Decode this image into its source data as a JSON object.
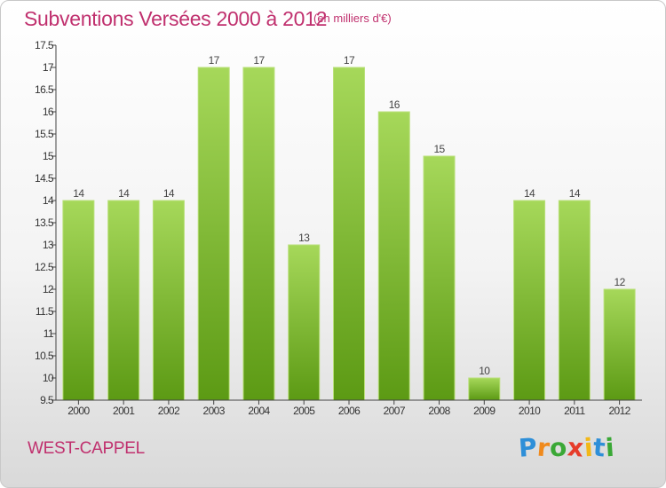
{
  "chart_data": {
    "type": "bar",
    "title": "Subventions Versées 2000 à 2012",
    "subtitle": "(en milliers d'€)",
    "categories": [
      "2000",
      "2001",
      "2002",
      "2003",
      "2004",
      "2005",
      "2006",
      "2007",
      "2008",
      "2009",
      "2010",
      "2011",
      "2012"
    ],
    "values": [
      14,
      14,
      14,
      17,
      17,
      13,
      17,
      16,
      15,
      10,
      14,
      14,
      12
    ],
    "value_labels": [
      "14",
      "14",
      "14",
      "17",
      "17",
      "13",
      "17",
      "16",
      "15",
      "10",
      "14",
      "14",
      "12"
    ],
    "ylim": [
      9.5,
      17.5
    ],
    "yticks": [
      9.5,
      10,
      10.5,
      11,
      11.5,
      12,
      12.5,
      13,
      13.5,
      14,
      14.5,
      15,
      15.5,
      16,
      16.5,
      17,
      17.5
    ],
    "ytick_labels": [
      "9.5",
      "10",
      "10.5",
      "11",
      "11.5",
      "12",
      "12.5",
      "13",
      "13.5",
      "14",
      "14.5",
      "15",
      "15.5",
      "16",
      "16.5",
      "17",
      "17.5"
    ],
    "grid": false,
    "legend": "none",
    "colors": {
      "bar_light": "#a6d85a",
      "bar_dark": "#5c9a14",
      "axis": "#444444",
      "title": "#c0306e"
    }
  },
  "footer": {
    "location": "WEST-CAPPEL",
    "logo_letters": [
      {
        "ch": "P",
        "color": "#2e8fd8"
      },
      {
        "ch": "r",
        "color": "#f08a1c"
      },
      {
        "ch": "o",
        "color": "#3aa836"
      },
      {
        "ch": "x",
        "color": "#e63c2a"
      },
      {
        "ch": "i",
        "color": "#f2b818"
      },
      {
        "ch": "t",
        "color": "#2e8fd8"
      },
      {
        "ch": "i",
        "color": "#3aa836"
      }
    ]
  }
}
